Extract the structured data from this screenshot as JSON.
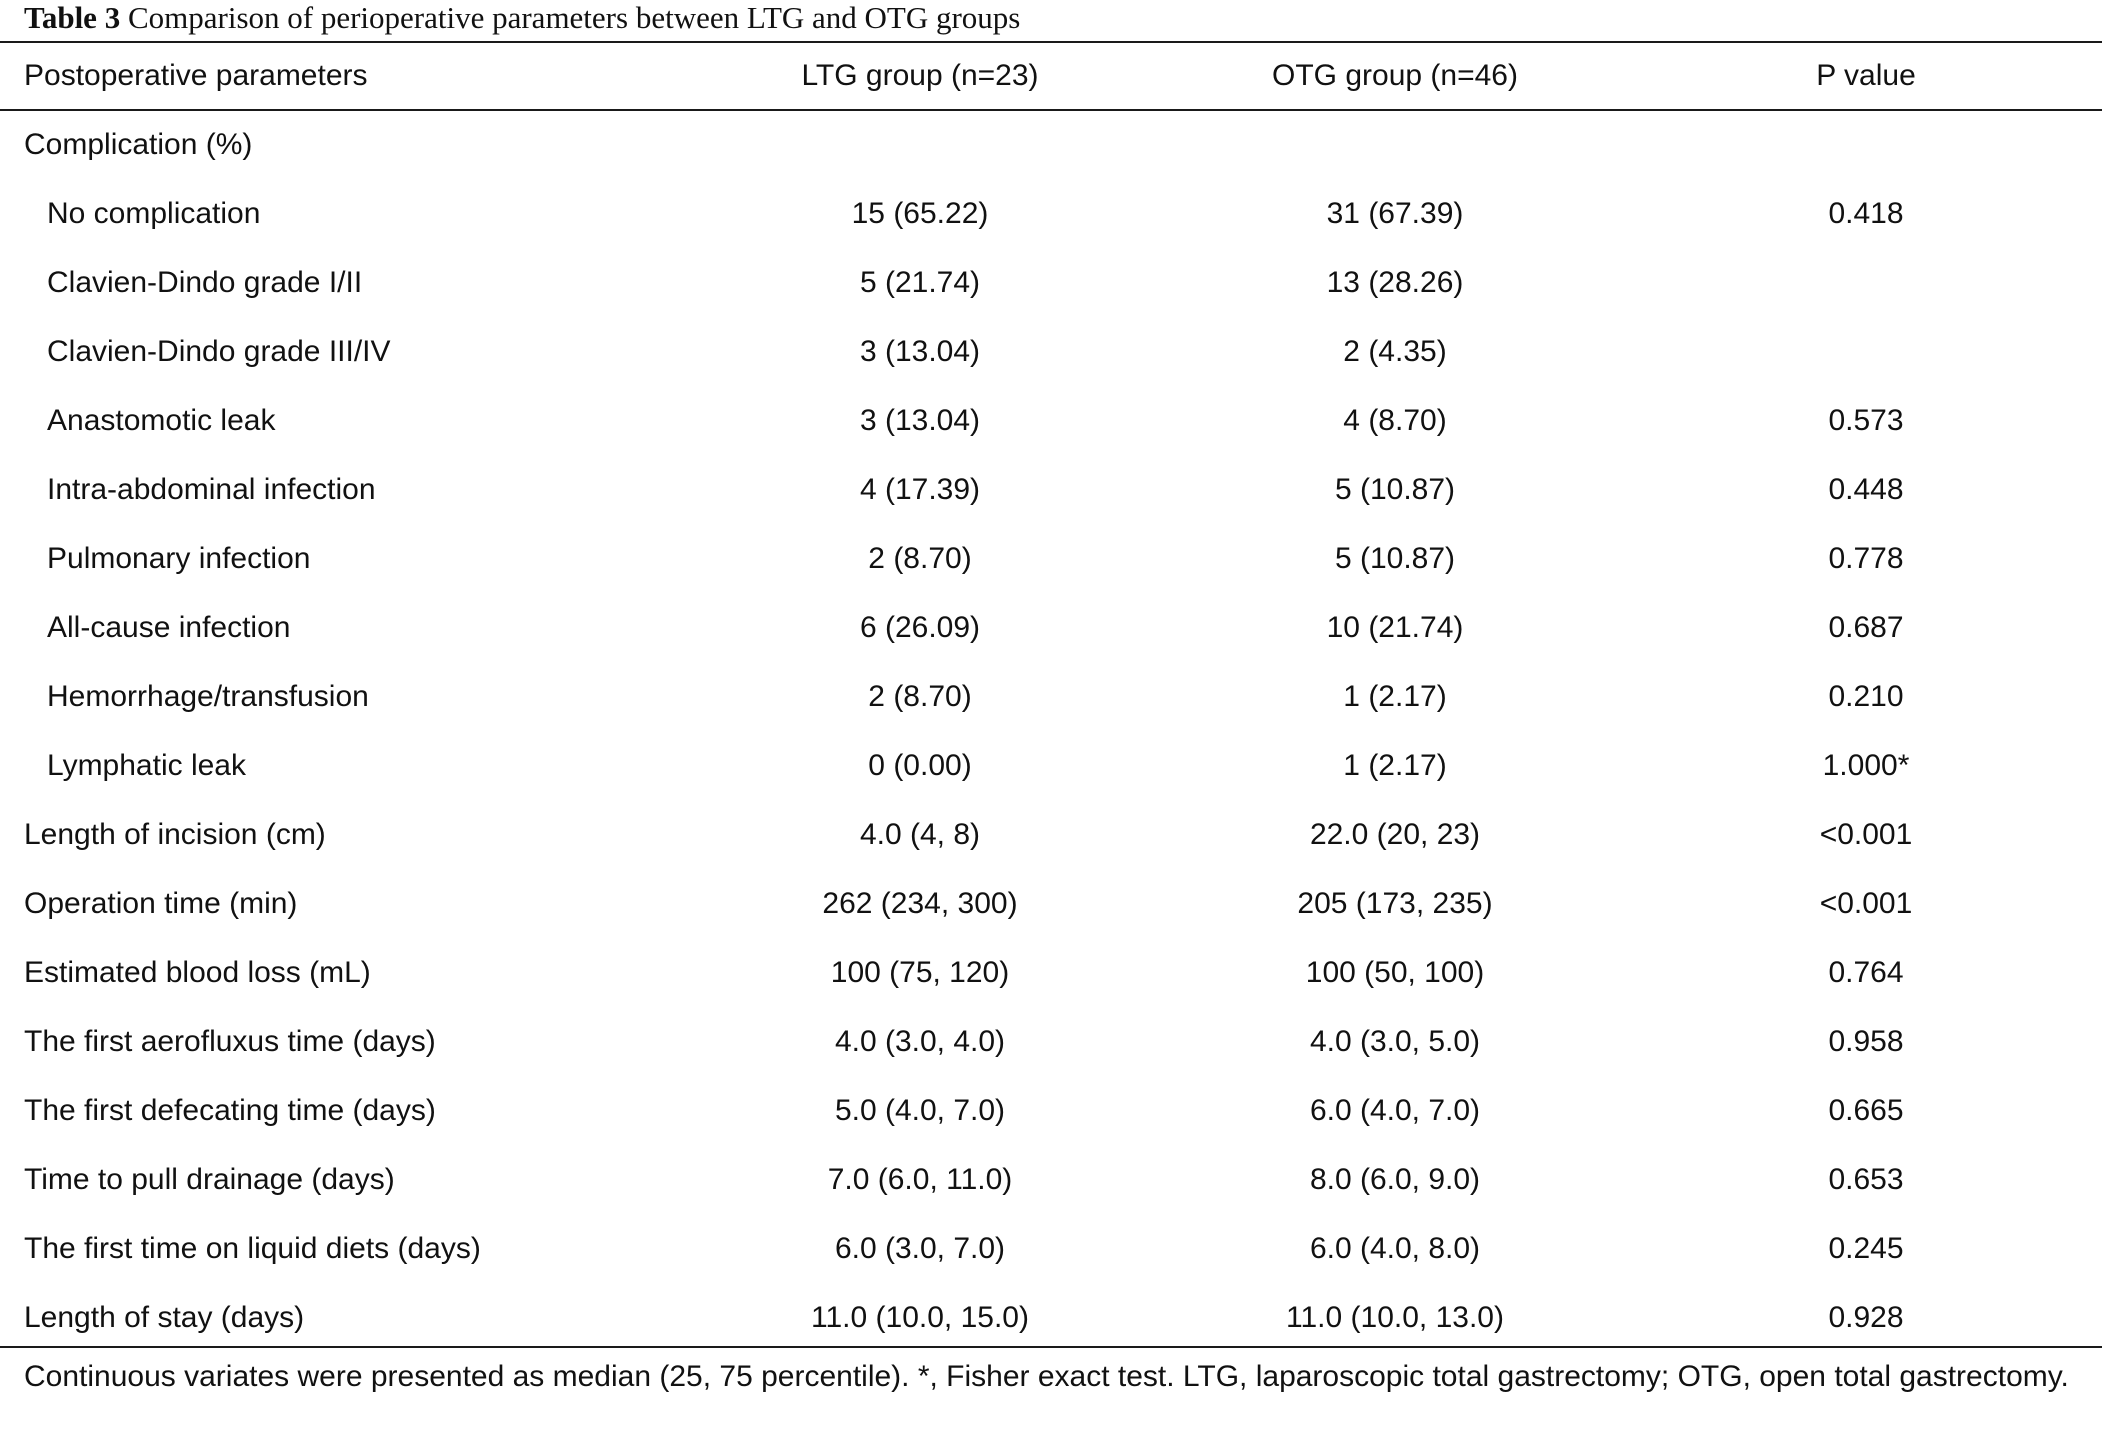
{
  "caption": {
    "label": "Table 3",
    "text": "Comparison of perioperative parameters between LTG and OTG groups"
  },
  "columns": [
    "Postoperative parameters",
    "LTG group (n=23)",
    "OTG group (n=46)",
    "P value"
  ],
  "rows": [
    {
      "label": "Complication (%)",
      "indent": false,
      "ltg": "",
      "otg": "",
      "p": ""
    },
    {
      "label": "No complication",
      "indent": true,
      "ltg": "15 (65.22)",
      "otg": "31 (67.39)",
      "p": "0.418"
    },
    {
      "label": "Clavien-Dindo grade I/II",
      "indent": true,
      "ltg": "5 (21.74)",
      "otg": "13 (28.26)",
      "p": ""
    },
    {
      "label": "Clavien-Dindo grade III/IV",
      "indent": true,
      "ltg": "3 (13.04)",
      "otg": "2 (4.35)",
      "p": ""
    },
    {
      "label": "Anastomotic leak",
      "indent": true,
      "ltg": "3 (13.04)",
      "otg": "4 (8.70)",
      "p": "0.573"
    },
    {
      "label": "Intra-abdominal infection",
      "indent": true,
      "ltg": "4 (17.39)",
      "otg": "5 (10.87)",
      "p": "0.448"
    },
    {
      "label": "Pulmonary infection",
      "indent": true,
      "ltg": "2 (8.70)",
      "otg": "5 (10.87)",
      "p": "0.778"
    },
    {
      "label": "All-cause infection",
      "indent": true,
      "ltg": "6 (26.09)",
      "otg": "10 (21.74)",
      "p": "0.687"
    },
    {
      "label": "Hemorrhage/transfusion",
      "indent": true,
      "ltg": "2 (8.70)",
      "otg": "1 (2.17)",
      "p": "0.210"
    },
    {
      "label": "Lymphatic leak",
      "indent": true,
      "ltg": "0 (0.00)",
      "otg": "1 (2.17)",
      "p": "1.000*"
    },
    {
      "label": "Length of incision (cm)",
      "indent": false,
      "ltg": "4.0 (4, 8)",
      "otg": "22.0 (20, 23)",
      "p": "<0.001"
    },
    {
      "label": "Operation time (min)",
      "indent": false,
      "ltg": "262 (234, 300)",
      "otg": "205 (173, 235)",
      "p": "<0.001"
    },
    {
      "label": "Estimated blood loss (mL)",
      "indent": false,
      "ltg": "100 (75, 120)",
      "otg": "100 (50, 100)",
      "p": "0.764"
    },
    {
      "label": "The first aerofluxus time (days)",
      "indent": false,
      "ltg": "4.0 (3.0, 4.0)",
      "otg": "4.0 (3.0, 5.0)",
      "p": "0.958"
    },
    {
      "label": "The first defecating time (days)",
      "indent": false,
      "ltg": "5.0 (4.0, 7.0)",
      "otg": "6.0 (4.0, 7.0)",
      "p": "0.665"
    },
    {
      "label": "Time to pull drainage (days)",
      "indent": false,
      "ltg": "7.0 (6.0, 11.0)",
      "otg": "8.0 (6.0, 9.0)",
      "p": "0.653"
    },
    {
      "label": "The first time on liquid diets (days)",
      "indent": false,
      "ltg": "6.0 (3.0, 7.0)",
      "otg": "6.0 (4.0, 8.0)",
      "p": "0.245"
    },
    {
      "label": "Length of stay (days)",
      "indent": false,
      "ltg": "11.0 (10.0, 15.0)",
      "otg": "11.0 (10.0, 13.0)",
      "p": "0.928"
    }
  ],
  "footnote": "Continuous variates were presented as median (25, 75 percentile). *, Fisher exact test. LTG, laparoscopic total gastrectomy; OTG, open total gastrectomy."
}
